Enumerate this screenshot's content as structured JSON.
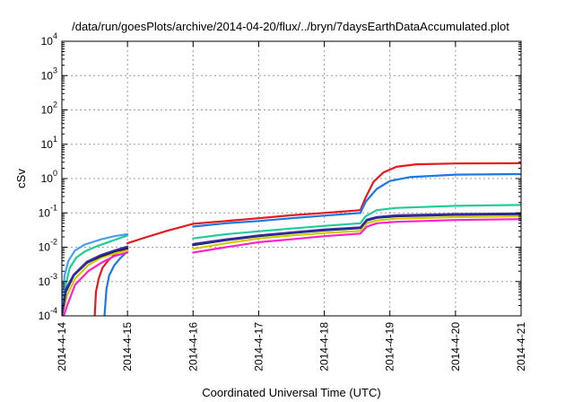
{
  "chart_data": {
    "type": "line",
    "title": "/data/run/goesPlots/archive/2014-04-20/flux/../bryn/7daysEarthDataAccumulated.plot",
    "xlabel": "Coordinated Universal Time (UTC)",
    "ylabel": "cSv",
    "y_scale": "log",
    "ylim": [
      0.0001,
      10000
    ],
    "xlim": [
      0,
      7
    ],
    "x_tick_labels": [
      "2014-4-14",
      "2014-4-15",
      "2014-4-16",
      "2014-4-17",
      "2014-4-18",
      "2014-4-19",
      "2014-4-20",
      "2014-4-21"
    ],
    "y_tick_labels": [
      {
        "base": "10",
        "exp": "-4"
      },
      {
        "base": "10",
        "exp": "-3"
      },
      {
        "base": "10",
        "exp": "-2"
      },
      {
        "base": "10",
        "exp": "-1"
      },
      {
        "base": "10",
        "exp": "0"
      },
      {
        "base": "10",
        "exp": "1"
      },
      {
        "base": "10",
        "exp": "2"
      },
      {
        "base": "10",
        "exp": "3"
      },
      {
        "base": "10",
        "exp": "4"
      }
    ],
    "grid": true,
    "series": [
      {
        "color": "#e41a1c",
        "segments": [
          [
            [
              0.5,
              0.0001
            ],
            [
              0.52,
              0.0005
            ],
            [
              0.56,
              0.0012
            ],
            [
              0.62,
              0.0025
            ],
            [
              0.7,
              0.004
            ],
            [
              0.8,
              0.006
            ],
            [
              0.9,
              0.0075
            ],
            [
              1.0,
              0.009
            ]
          ],
          [
            [
              1.0,
              0.013
            ],
            [
              1.3,
              0.02
            ],
            [
              1.6,
              0.03
            ],
            [
              2.0,
              0.048
            ],
            [
              2.5,
              0.058
            ],
            [
              3.0,
              0.07
            ],
            [
              3.5,
              0.085
            ],
            [
              4.0,
              0.1
            ],
            [
              4.55,
              0.12
            ],
            [
              4.63,
              0.28
            ],
            [
              4.75,
              0.8
            ],
            [
              4.9,
              1.5
            ],
            [
              5.1,
              2.2
            ],
            [
              5.4,
              2.6
            ],
            [
              6.0,
              2.75
            ],
            [
              7.0,
              2.8
            ]
          ]
        ]
      },
      {
        "color": "#1f77e4",
        "segments": [
          [
            [
              0.65,
              0.0001
            ],
            [
              0.68,
              0.0006
            ],
            [
              0.72,
              0.0015
            ],
            [
              0.8,
              0.003
            ],
            [
              0.9,
              0.005
            ],
            [
              1.0,
              0.0075
            ]
          ],
          [
            [
              2.0,
              0.04
            ],
            [
              2.5,
              0.05
            ],
            [
              3.0,
              0.058
            ],
            [
              3.5,
              0.07
            ],
            [
              4.0,
              0.083
            ],
            [
              4.55,
              0.1
            ],
            [
              4.63,
              0.21
            ],
            [
              4.8,
              0.5
            ],
            [
              5.0,
              0.85
            ],
            [
              5.3,
              1.1
            ],
            [
              6.0,
              1.3
            ],
            [
              7.0,
              1.35
            ]
          ]
        ]
      },
      {
        "color": "#22cc99",
        "segments": [
          [
            [
              0.0,
              0.0001
            ],
            [
              0.05,
              0.0007
            ],
            [
              0.12,
              0.0025
            ],
            [
              0.22,
              0.005
            ],
            [
              0.35,
              0.0075
            ],
            [
              0.55,
              0.011
            ],
            [
              0.75,
              0.015
            ],
            [
              1.0,
              0.022
            ]
          ],
          [
            [
              2.0,
              0.018
            ],
            [
              2.5,
              0.024
            ],
            [
              3.0,
              0.029
            ],
            [
              3.5,
              0.035
            ],
            [
              4.0,
              0.042
            ],
            [
              4.55,
              0.05
            ],
            [
              4.63,
              0.08
            ],
            [
              4.8,
              0.12
            ],
            [
              5.1,
              0.14
            ],
            [
              6.0,
              0.16
            ],
            [
              7.0,
              0.17
            ]
          ]
        ]
      },
      {
        "color": "#4a9df0",
        "segments": [
          [
            [
              0.0,
              0.0001
            ],
            [
              0.04,
              0.0015
            ],
            [
              0.1,
              0.004
            ],
            [
              0.2,
              0.008
            ],
            [
              0.35,
              0.012
            ],
            [
              0.6,
              0.017
            ],
            [
              0.8,
              0.021
            ],
            [
              1.0,
              0.024
            ]
          ]
        ]
      },
      {
        "color": "#ff22cc",
        "segments": [
          [
            [
              0.0,
              7e-05
            ],
            [
              0.08,
              0.0002
            ],
            [
              0.2,
              0.0008
            ],
            [
              0.4,
              0.002
            ],
            [
              0.6,
              0.0035
            ],
            [
              0.8,
              0.0055
            ],
            [
              1.0,
              0.007
            ]
          ],
          [
            [
              2.0,
              0.007
            ],
            [
              2.5,
              0.01
            ],
            [
              3.0,
              0.014
            ],
            [
              3.5,
              0.017
            ],
            [
              4.0,
              0.021
            ],
            [
              4.55,
              0.025
            ],
            [
              4.65,
              0.04
            ],
            [
              4.8,
              0.05
            ],
            [
              5.1,
              0.055
            ],
            [
              6.0,
              0.062
            ],
            [
              7.0,
              0.066
            ]
          ]
        ]
      },
      {
        "color": "#cccc00",
        "segments": [
          [
            [
              0.0,
              0.0001
            ],
            [
              0.08,
              0.0004
            ],
            [
              0.2,
              0.0012
            ],
            [
              0.4,
              0.003
            ],
            [
              0.6,
              0.005
            ],
            [
              0.8,
              0.0065
            ],
            [
              1.0,
              0.008
            ]
          ],
          [
            [
              2.0,
              0.009
            ],
            [
              2.5,
              0.013
            ],
            [
              3.0,
              0.018
            ],
            [
              3.5,
              0.022
            ],
            [
              4.0,
              0.026
            ],
            [
              4.55,
              0.03
            ],
            [
              4.65,
              0.05
            ],
            [
              4.8,
              0.06
            ],
            [
              5.1,
              0.068
            ],
            [
              6.0,
              0.075
            ],
            [
              7.0,
              0.08
            ]
          ]
        ]
      },
      {
        "color": "#111111",
        "segments": [
          [
            [
              0.0,
              0.0001
            ],
            [
              0.06,
              0.0005
            ],
            [
              0.18,
              0.0015
            ],
            [
              0.38,
              0.0035
            ],
            [
              0.6,
              0.0055
            ],
            [
              0.8,
              0.0075
            ],
            [
              1.0,
              0.0095
            ]
          ],
          [
            [
              2.0,
              0.0115
            ],
            [
              2.5,
              0.016
            ],
            [
              3.0,
              0.021
            ],
            [
              3.5,
              0.026
            ],
            [
              4.0,
              0.031
            ],
            [
              4.55,
              0.036
            ],
            [
              4.65,
              0.06
            ],
            [
              4.8,
              0.072
            ],
            [
              5.1,
              0.08
            ],
            [
              6.0,
              0.088
            ],
            [
              7.0,
              0.092
            ]
          ]
        ]
      },
      {
        "color": "#6a3d9a",
        "segments": [
          [
            [
              0.0,
              0.0001
            ],
            [
              0.06,
              0.0006
            ],
            [
              0.18,
              0.0016
            ],
            [
              0.38,
              0.0038
            ],
            [
              0.6,
              0.006
            ],
            [
              0.8,
              0.008
            ],
            [
              1.0,
              0.0105
            ]
          ],
          [
            [
              2.0,
              0.0125
            ],
            [
              2.5,
              0.017
            ],
            [
              3.0,
              0.022
            ],
            [
              3.5,
              0.027
            ],
            [
              4.0,
              0.033
            ],
            [
              4.55,
              0.038
            ],
            [
              4.65,
              0.064
            ],
            [
              4.8,
              0.076
            ],
            [
              5.1,
              0.085
            ],
            [
              6.0,
              0.093
            ],
            [
              7.0,
              0.097
            ]
          ]
        ]
      },
      {
        "color": "#2a2aa8",
        "segments": [
          [
            [
              0.0,
              0.0001
            ],
            [
              0.06,
              0.00055
            ],
            [
              0.18,
              0.0015
            ],
            [
              0.38,
              0.0036
            ],
            [
              0.6,
              0.0058
            ],
            [
              0.8,
              0.0078
            ],
            [
              1.0,
              0.01
            ]
          ],
          [
            [
              2.0,
              0.012
            ],
            [
              2.5,
              0.0165
            ],
            [
              3.0,
              0.0215
            ],
            [
              3.5,
              0.0265
            ],
            [
              4.0,
              0.032
            ],
            [
              4.55,
              0.037
            ],
            [
              4.65,
              0.062
            ],
            [
              4.8,
              0.074
            ],
            [
              5.1,
              0.082
            ],
            [
              6.0,
              0.09
            ],
            [
              7.0,
              0.095
            ]
          ]
        ]
      }
    ]
  }
}
